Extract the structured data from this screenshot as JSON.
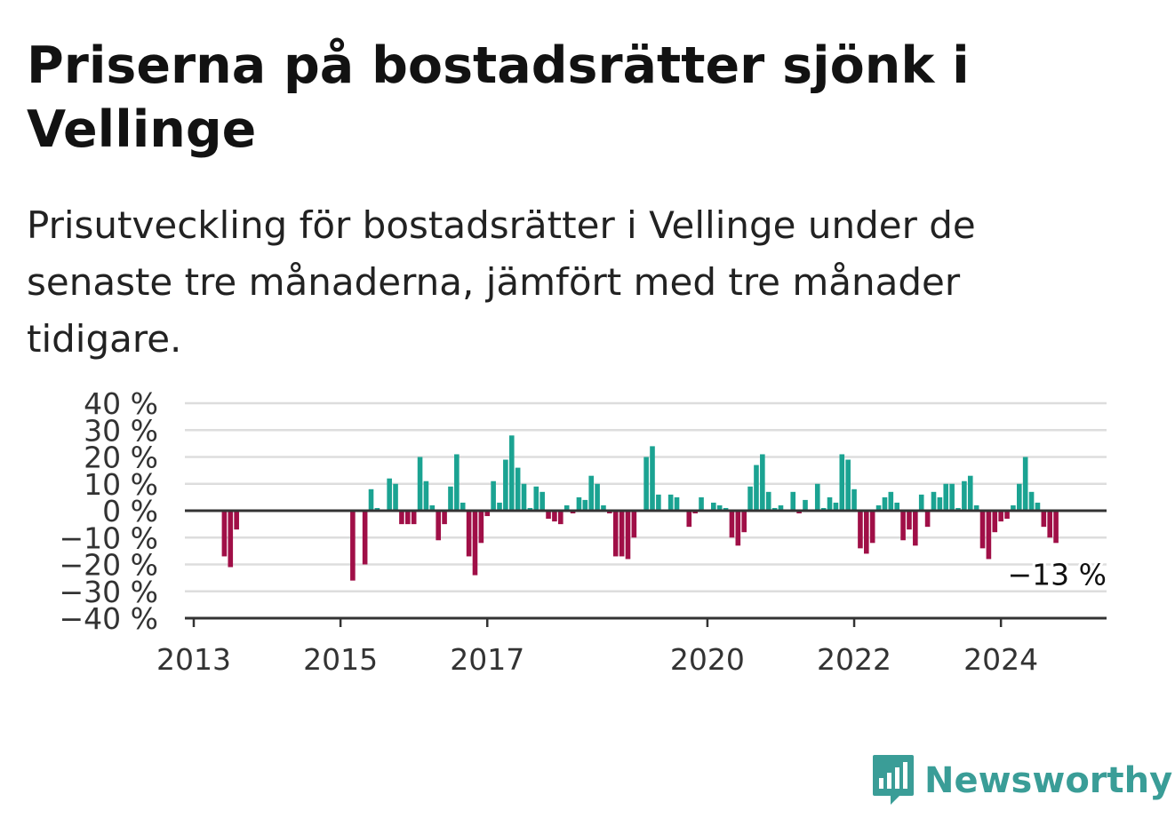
{
  "title": "Priserna på bostadsrätter sjönk i Vellinge",
  "subtitle": "Prisutveckling för bostadsrätter i Vellinge under de senaste tre månaderna, jämfört med tre månader tidigare.",
  "brand": {
    "name": "Newsworthy",
    "icon": "newsworthy-logo-icon"
  },
  "colors": {
    "positive": "#1ba392",
    "negative": "#a00f47",
    "grid": "#dddddd",
    "axis": "#333333"
  },
  "chart_data": {
    "type": "bar",
    "title": "",
    "xlabel": "",
    "ylabel": "",
    "ylim": [
      -40,
      40
    ],
    "y_ticks": [
      {
        "value": 40,
        "label": "40 %"
      },
      {
        "value": 30,
        "label": "30 %"
      },
      {
        "value": 20,
        "label": "20 %"
      },
      {
        "value": 10,
        "label": "10 %"
      },
      {
        "value": 0,
        "label": "0 %"
      },
      {
        "value": -10,
        "label": "−10 %"
      },
      {
        "value": -20,
        "label": "−20 %"
      },
      {
        "value": -30,
        "label": "−30 %"
      },
      {
        "value": -40,
        "label": "−40 %"
      }
    ],
    "x_ticks": [
      "2013",
      "2015",
      "2017",
      "2020",
      "2022",
      "2024"
    ],
    "x_start": "2013-01",
    "grid": true,
    "annotation": {
      "label": "−13 %",
      "target": "2024-12"
    },
    "series": [
      {
        "values": [
          {
            "date": "2013-06",
            "value": -17
          },
          {
            "date": "2013-07",
            "value": -21
          },
          {
            "date": "2013-08",
            "value": -7
          },
          {
            "date": "2015-03",
            "value": -26
          },
          {
            "date": "2015-05",
            "value": -20
          },
          {
            "date": "2015-06",
            "value": 8
          },
          {
            "date": "2015-07",
            "value": 1
          },
          {
            "date": "2015-09",
            "value": 12
          },
          {
            "date": "2015-10",
            "value": 10
          },
          {
            "date": "2015-11",
            "value": -5
          },
          {
            "date": "2015-12",
            "value": -5
          },
          {
            "date": "2016-01",
            "value": -5
          },
          {
            "date": "2016-02",
            "value": 20
          },
          {
            "date": "2016-03",
            "value": 11
          },
          {
            "date": "2016-04",
            "value": 2
          },
          {
            "date": "2016-05",
            "value": -11
          },
          {
            "date": "2016-06",
            "value": -5
          },
          {
            "date": "2016-07",
            "value": 9
          },
          {
            "date": "2016-08",
            "value": 21
          },
          {
            "date": "2016-09",
            "value": 3
          },
          {
            "date": "2016-10",
            "value": -17
          },
          {
            "date": "2016-11",
            "value": -24
          },
          {
            "date": "2016-12",
            "value": -12
          },
          {
            "date": "2017-01",
            "value": -2
          },
          {
            "date": "2017-02",
            "value": 11
          },
          {
            "date": "2017-03",
            "value": 3
          },
          {
            "date": "2017-04",
            "value": 19
          },
          {
            "date": "2017-05",
            "value": 28
          },
          {
            "date": "2017-06",
            "value": 16
          },
          {
            "date": "2017-07",
            "value": 10
          },
          {
            "date": "2017-08",
            "value": 1
          },
          {
            "date": "2017-09",
            "value": 9
          },
          {
            "date": "2017-10",
            "value": 7
          },
          {
            "date": "2017-11",
            "value": -3
          },
          {
            "date": "2017-12",
            "value": -4
          },
          {
            "date": "2018-01",
            "value": -5
          },
          {
            "date": "2018-02",
            "value": 2
          },
          {
            "date": "2018-03",
            "value": -1
          },
          {
            "date": "2018-04",
            "value": 5
          },
          {
            "date": "2018-05",
            "value": 4
          },
          {
            "date": "2018-06",
            "value": 13
          },
          {
            "date": "2018-07",
            "value": 10
          },
          {
            "date": "2018-08",
            "value": 2
          },
          {
            "date": "2018-09",
            "value": -1
          },
          {
            "date": "2018-10",
            "value": -17
          },
          {
            "date": "2018-11",
            "value": -17
          },
          {
            "date": "2018-12",
            "value": -18
          },
          {
            "date": "2019-01",
            "value": -10
          },
          {
            "date": "2019-03",
            "value": 20
          },
          {
            "date": "2019-04",
            "value": 24
          },
          {
            "date": "2019-05",
            "value": 6
          },
          {
            "date": "2019-07",
            "value": 6
          },
          {
            "date": "2019-08",
            "value": 5
          },
          {
            "date": "2019-10",
            "value": -6
          },
          {
            "date": "2019-11",
            "value": -1
          },
          {
            "date": "2019-12",
            "value": 5
          },
          {
            "date": "2020-02",
            "value": 3
          },
          {
            "date": "2020-03",
            "value": 2
          },
          {
            "date": "2020-04",
            "value": 1
          },
          {
            "date": "2020-05",
            "value": -10
          },
          {
            "date": "2020-06",
            "value": -13
          },
          {
            "date": "2020-07",
            "value": -8
          },
          {
            "date": "2020-08",
            "value": 9
          },
          {
            "date": "2020-09",
            "value": 17
          },
          {
            "date": "2020-10",
            "value": 21
          },
          {
            "date": "2020-11",
            "value": 7
          },
          {
            "date": "2020-12",
            "value": 1
          },
          {
            "date": "2021-01",
            "value": 2
          },
          {
            "date": "2021-03",
            "value": 7
          },
          {
            "date": "2021-04",
            "value": -1
          },
          {
            "date": "2021-05",
            "value": 4
          },
          {
            "date": "2021-07",
            "value": 10
          },
          {
            "date": "2021-08",
            "value": 1
          },
          {
            "date": "2021-09",
            "value": 5
          },
          {
            "date": "2021-10",
            "value": 3
          },
          {
            "date": "2021-11",
            "value": 21
          },
          {
            "date": "2021-12",
            "value": 19
          },
          {
            "date": "2022-01",
            "value": 8
          },
          {
            "date": "2022-02",
            "value": -14
          },
          {
            "date": "2022-03",
            "value": -16
          },
          {
            "date": "2022-04",
            "value": -12
          },
          {
            "date": "2022-05",
            "value": 2
          },
          {
            "date": "2022-06",
            "value": 5
          },
          {
            "date": "2022-07",
            "value": 7
          },
          {
            "date": "2022-08",
            "value": 3
          },
          {
            "date": "2022-09",
            "value": -11
          },
          {
            "date": "2022-10",
            "value": -7
          },
          {
            "date": "2022-11",
            "value": -13
          },
          {
            "date": "2022-12",
            "value": 6
          },
          {
            "date": "2023-01",
            "value": -6
          },
          {
            "date": "2023-02",
            "value": 7
          },
          {
            "date": "2023-03",
            "value": 5
          },
          {
            "date": "2023-04",
            "value": 10
          },
          {
            "date": "2023-05",
            "value": 10
          },
          {
            "date": "2023-06",
            "value": 1
          },
          {
            "date": "2023-07",
            "value": 11
          },
          {
            "date": "2023-08",
            "value": 13
          },
          {
            "date": "2023-09",
            "value": 2
          },
          {
            "date": "2023-10",
            "value": -14
          },
          {
            "date": "2023-11",
            "value": -18
          },
          {
            "date": "2023-12",
            "value": -8
          },
          {
            "date": "2024-01",
            "value": -4
          },
          {
            "date": "2024-02",
            "value": -3
          },
          {
            "date": "2024-03",
            "value": 2
          },
          {
            "date": "2024-04",
            "value": 10
          },
          {
            "date": "2024-05",
            "value": 20
          },
          {
            "date": "2024-06",
            "value": 7
          },
          {
            "date": "2024-07",
            "value": 3
          },
          {
            "date": "2024-08",
            "value": -6
          },
          {
            "date": "2024-09",
            "value": -10
          },
          {
            "date": "2024-10",
            "value": -12
          }
        ]
      }
    ]
  }
}
